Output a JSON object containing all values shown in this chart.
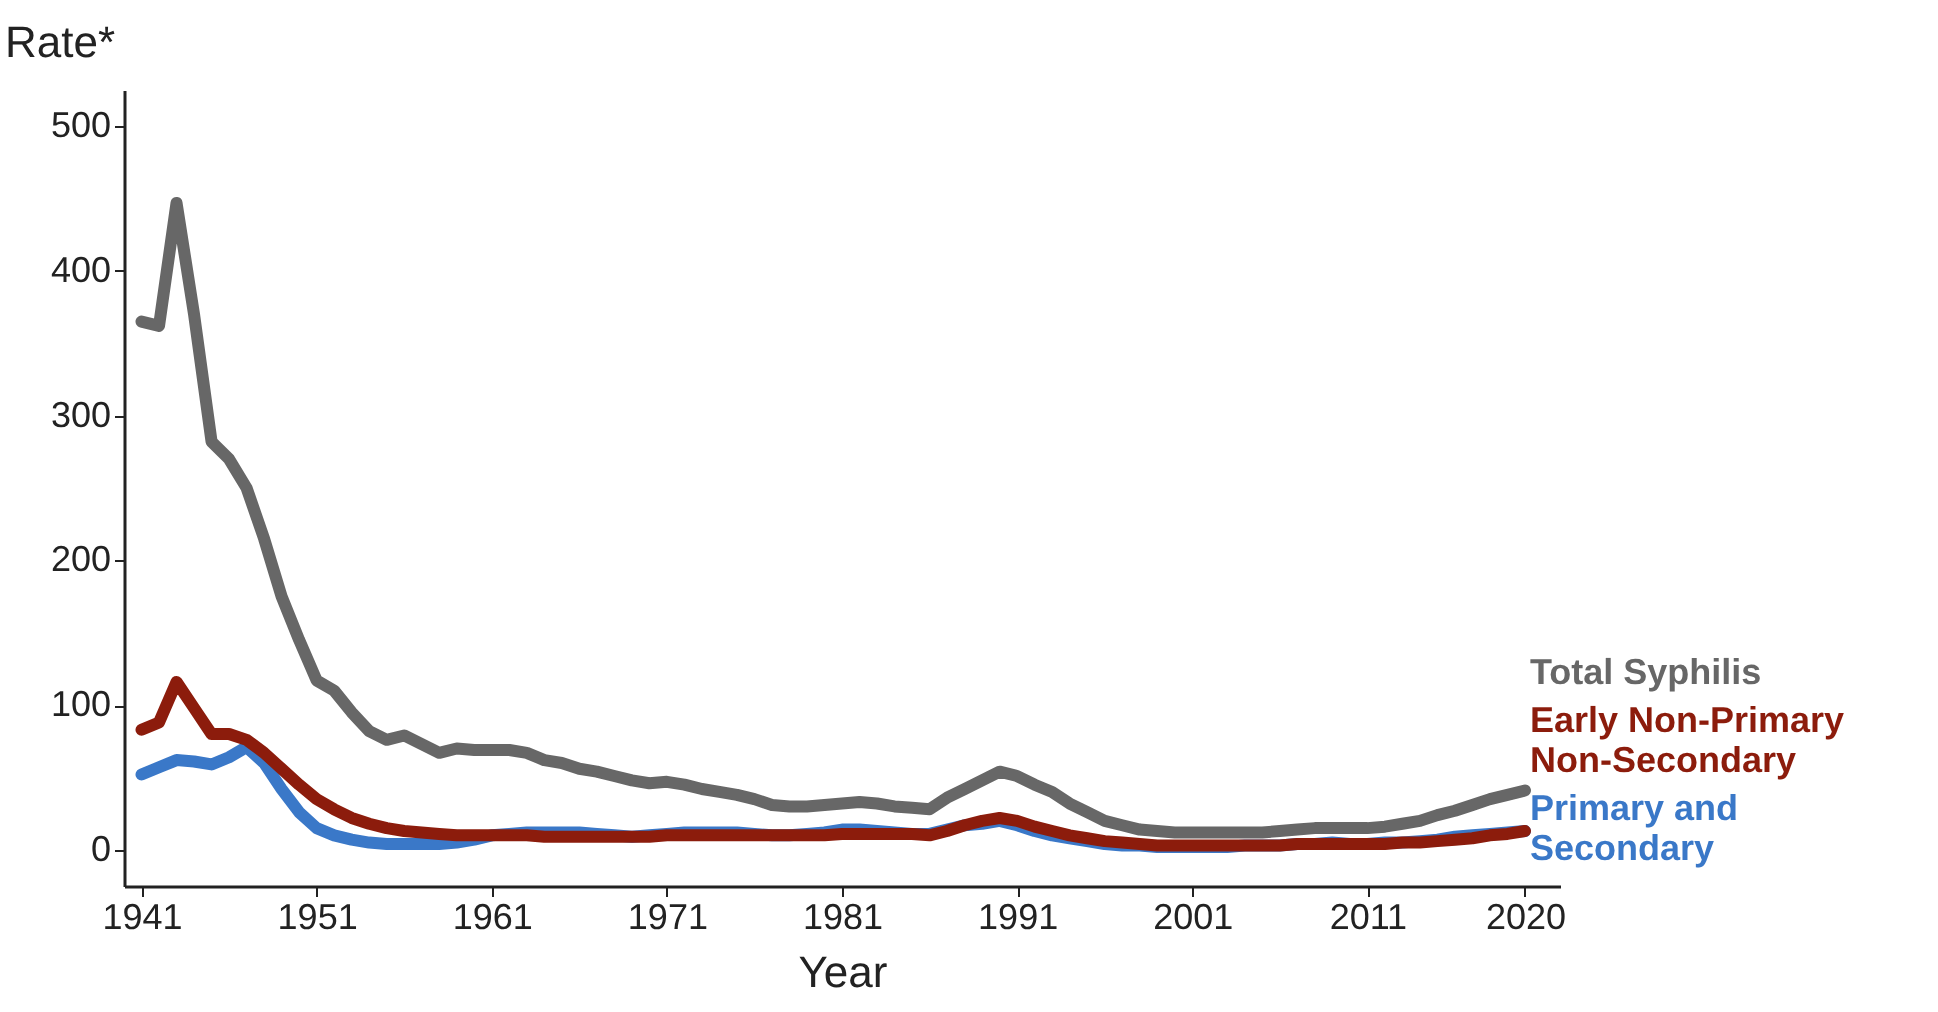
{
  "chart_data": {
    "type": "line",
    "xlabel": "Year",
    "ylabel": "Rate*",
    "x": [
      1941,
      1942,
      1943,
      1944,
      1945,
      1946,
      1947,
      1948,
      1949,
      1950,
      1951,
      1952,
      1953,
      1954,
      1955,
      1956,
      1957,
      1958,
      1959,
      1960,
      1961,
      1962,
      1963,
      1964,
      1965,
      1966,
      1967,
      1968,
      1969,
      1970,
      1971,
      1972,
      1973,
      1974,
      1975,
      1976,
      1977,
      1978,
      1979,
      1980,
      1981,
      1982,
      1983,
      1984,
      1985,
      1986,
      1987,
      1988,
      1989,
      1990,
      1991,
      1992,
      1993,
      1994,
      1995,
      1996,
      1997,
      1998,
      1999,
      2000,
      2001,
      2002,
      2003,
      2004,
      2005,
      2006,
      2007,
      2008,
      2009,
      2010,
      2011,
      2012,
      2013,
      2014,
      2015,
      2016,
      2017,
      2018,
      2019,
      2020
    ],
    "series": [
      {
        "name": "Total Syphilis",
        "color": "#676767",
        "values": [
          365,
          362,
          447,
          370,
          282,
          270,
          250,
          215,
          175,
          145,
          117,
          110,
          95,
          82,
          76,
          79,
          73,
          67,
          70,
          69,
          69,
          69,
          67,
          62,
          60,
          56,
          54,
          51,
          48,
          46,
          47,
          45,
          42,
          40,
          38,
          35,
          31,
          30,
          30,
          31,
          32,
          33,
          32,
          30,
          29,
          28,
          36,
          42,
          48,
          54,
          51,
          45,
          40,
          32,
          26,
          20,
          17,
          14,
          13,
          12,
          12,
          12,
          12,
          12,
          12,
          13,
          14,
          15,
          15,
          15,
          15,
          16,
          18,
          20,
          24,
          27,
          31,
          35,
          38,
          41
        ]
      },
      {
        "name": "Early Non-Primary Non-Secondary",
        "color": "#8c1c0c",
        "values": [
          83,
          88,
          116,
          98,
          80,
          80,
          76,
          67,
          56,
          45,
          35,
          28,
          22,
          18,
          15,
          13,
          12,
          11,
          10,
          10,
          10,
          10,
          10,
          9,
          9,
          9,
          9,
          9,
          9,
          9,
          10,
          10,
          10,
          10,
          10,
          10,
          10,
          10,
          10,
          10,
          11,
          11,
          11,
          11,
          11,
          10,
          13,
          17,
          20,
          22,
          20,
          16,
          13,
          10,
          8,
          6,
          5,
          4,
          3,
          3,
          3,
          3,
          3,
          3,
          3,
          3,
          4,
          4,
          4,
          4,
          4,
          4,
          5,
          5,
          6,
          7,
          8,
          10,
          11,
          13
        ]
      },
      {
        "name": "Primary and Secondary",
        "color": "#3a78c8",
        "values": [
          52,
          57,
          62,
          61,
          59,
          64,
          71,
          60,
          42,
          26,
          15,
          10,
          7,
          5,
          4,
          4,
          4,
          4,
          5,
          7,
          10,
          11,
          12,
          12,
          12,
          12,
          11,
          10,
          9,
          10,
          11,
          12,
          12,
          12,
          12,
          11,
          10,
          10,
          11,
          12,
          14,
          14,
          13,
          12,
          11,
          11,
          14,
          17,
          18,
          20,
          17,
          13,
          10,
          8,
          6,
          4,
          3,
          3,
          2,
          2,
          2,
          2,
          2,
          3,
          3,
          3,
          4,
          4,
          5,
          4,
          4,
          5,
          5,
          6,
          7,
          9,
          10,
          11,
          12,
          13
        ]
      }
    ],
    "xlim": [
      1940,
      2022
    ],
    "xticks": [
      1941,
      1951,
      1961,
      1971,
      1981,
      1991,
      2001,
      2011,
      2020
    ],
    "ylim": [
      -25,
      525
    ],
    "yticks": [
      0,
      100,
      200,
      300,
      400,
      500
    ],
    "grid": false,
    "legend": false,
    "line_style": "solid",
    "marker": "none"
  }
}
